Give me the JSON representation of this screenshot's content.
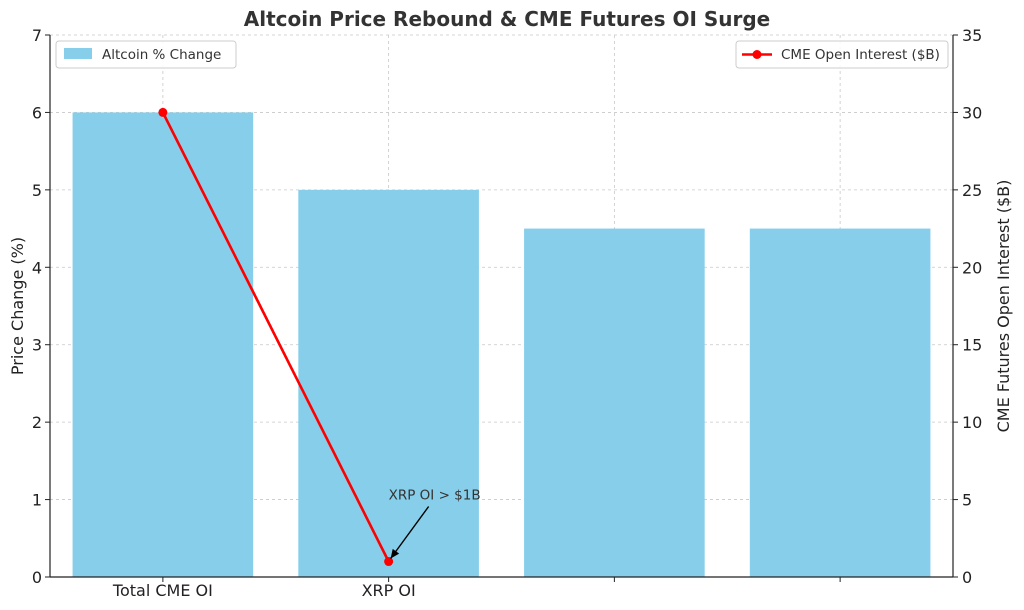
{
  "chart_data": {
    "type": "bar",
    "title": "Altcoin Price Rebound & CME Futures OI Surge",
    "categories": [
      "Total CME OI",
      "XRP OI",
      "",
      ""
    ],
    "bar_series": {
      "name": "Altcoin % Change",
      "values": [
        6,
        5,
        4.5,
        4.5
      ],
      "color": "#87CEEB"
    },
    "line_series": {
      "name": "CME Open Interest ($B)",
      "x": [
        "Total CME OI",
        "XRP OI"
      ],
      "values": [
        30,
        1
      ],
      "color": "#FF0000"
    },
    "ylabel": "Price Change (%)",
    "ylim": [
      0,
      7
    ],
    "yticks": [
      "0",
      "1",
      "2",
      "3",
      "4",
      "5",
      "6",
      "7"
    ],
    "y2label": "CME Futures Open Interest ($B)",
    "y2lim": [
      0,
      35
    ],
    "y2ticks": [
      "0",
      "5",
      "10",
      "15",
      "20",
      "25",
      "30",
      "35"
    ],
    "grid": true,
    "legend_bar_placement": "top-left",
    "legend_line_placement": "top-right",
    "annotation": {
      "text": "XRP OI > $1B",
      "target_category": "XRP OI",
      "target_value": 1
    }
  }
}
